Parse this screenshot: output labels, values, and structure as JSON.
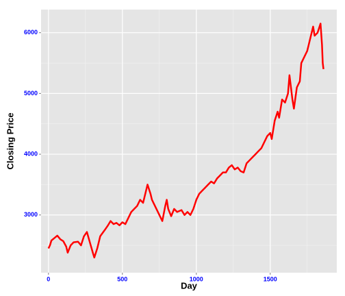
{
  "chart_data": {
    "type": "line",
    "xlabel": "Day",
    "ylabel": "Closing Price",
    "x": [
      0,
      10,
      20,
      40,
      60,
      80,
      100,
      120,
      130,
      150,
      170,
      200,
      220,
      240,
      260,
      280,
      300,
      310,
      330,
      350,
      380,
      400,
      420,
      440,
      460,
      480,
      500,
      520,
      540,
      560,
      580,
      600,
      620,
      640,
      660,
      670,
      690,
      700,
      720,
      740,
      760,
      770,
      790,
      800,
      810,
      830,
      850,
      870,
      900,
      920,
      940,
      960,
      980,
      1000,
      1020,
      1040,
      1060,
      1080,
      1100,
      1120,
      1140,
      1160,
      1180,
      1200,
      1220,
      1240,
      1260,
      1280,
      1300,
      1320,
      1340,
      1360,
      1380,
      1400,
      1420,
      1440,
      1460,
      1480,
      1500,
      1510,
      1530,
      1550,
      1560,
      1580,
      1600,
      1620,
      1630,
      1650,
      1660,
      1680,
      1700,
      1710,
      1730,
      1750,
      1770,
      1790,
      1800,
      1820,
      1840,
      1850,
      1855,
      1860
    ],
    "series": [
      {
        "name": "Closing Price",
        "color": "#ff0000",
        "values": [
          2450,
          2500,
          2580,
          2620,
          2660,
          2600,
          2570,
          2480,
          2380,
          2500,
          2550,
          2560,
          2500,
          2650,
          2720,
          2550,
          2380,
          2300,
          2450,
          2650,
          2750,
          2820,
          2900,
          2850,
          2870,
          2830,
          2880,
          2850,
          2950,
          3050,
          3100,
          3150,
          3250,
          3200,
          3400,
          3500,
          3350,
          3250,
          3150,
          3050,
          2950,
          2900,
          3150,
          3250,
          3100,
          2980,
          3100,
          3050,
          3080,
          3000,
          3050,
          3000,
          3100,
          3250,
          3350,
          3400,
          3450,
          3500,
          3550,
          3520,
          3600,
          3650,
          3700,
          3700,
          3780,
          3820,
          3750,
          3780,
          3720,
          3700,
          3850,
          3900,
          3950,
          4000,
          4050,
          4100,
          4200,
          4300,
          4350,
          4250,
          4550,
          4700,
          4600,
          4900,
          4850,
          5000,
          5300,
          4900,
          4750,
          5100,
          5200,
          5500,
          5600,
          5700,
          5900,
          6100,
          5950,
          6000,
          6150,
          5800,
          5500,
          5400
        ]
      }
    ],
    "xlim": [
      -50,
      1950
    ],
    "xticks": [
      0,
      500,
      1000,
      1500
    ],
    "ylim": [
      2050,
      6380
    ],
    "yticks": [
      3000,
      4000,
      5000,
      6000
    ],
    "x_minor_ticks": [
      250,
      750,
      1250,
      1750
    ],
    "y_minor_ticks": [
      2500,
      3500,
      4500,
      5500
    ],
    "grid": true
  }
}
